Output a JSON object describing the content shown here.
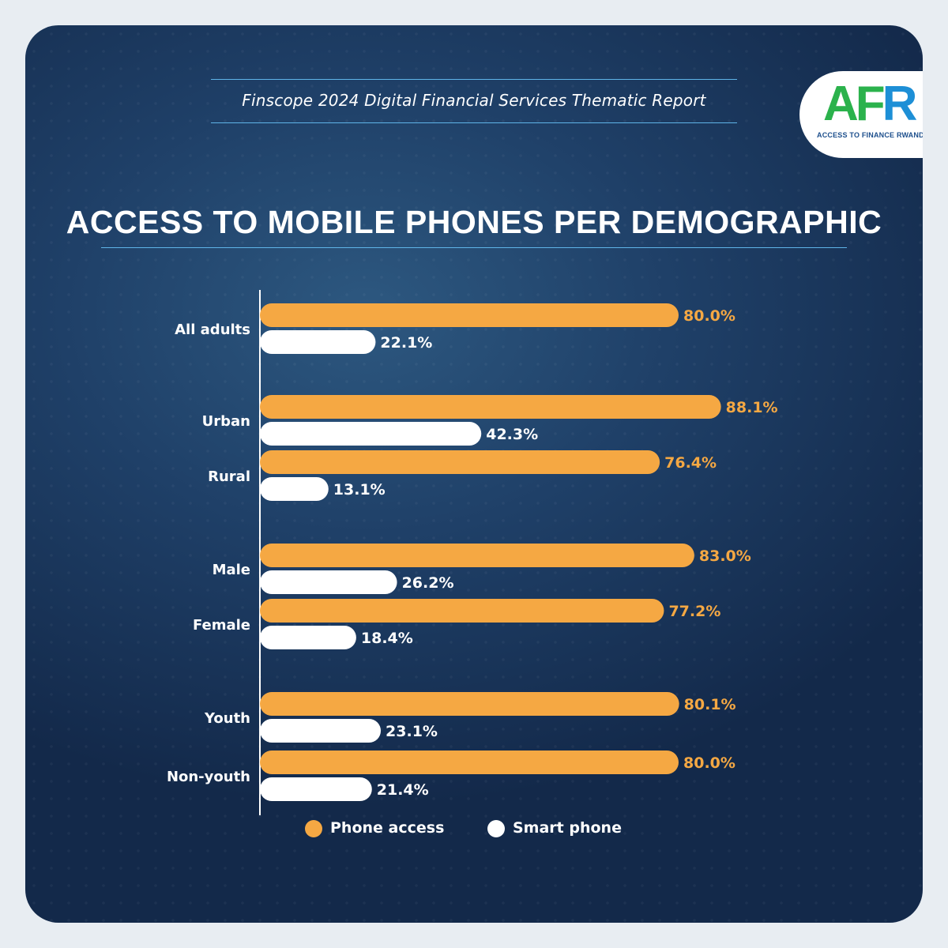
{
  "header": {
    "report_title": "Finscope 2024 Digital Financial Services Thematic Report",
    "logo_text": "AFR",
    "logo_tagline": "ACCESS TO FINANCE RWANDA"
  },
  "colors": {
    "background": "#1f4068",
    "accent_line": "#5fb4e8",
    "phone_access": "#f5a843",
    "smart_phone": "#ffffff",
    "logo_green": "#2bb24c",
    "logo_blue": "#1d8fd6"
  },
  "chart_data": {
    "type": "bar",
    "orientation": "horizontal",
    "title": "ACCESS TO MOBILE PHONES PER DEMOGRAPHIC",
    "categories": [
      "All adults",
      "Urban",
      "Rural",
      "Male",
      "Female",
      "Youth",
      "Non-youth"
    ],
    "groups": [
      [
        "All adults"
      ],
      [
        "Urban",
        "Rural"
      ],
      [
        "Male",
        "Female"
      ],
      [
        "Youth",
        "Non-youth"
      ]
    ],
    "series": [
      {
        "name": "Phone access",
        "color": "#f5a843",
        "values": [
          80.0,
          88.1,
          76.4,
          83.0,
          77.2,
          80.1,
          80.0
        ]
      },
      {
        "name": "Smart phone",
        "color": "#ffffff",
        "values": [
          22.1,
          42.3,
          13.1,
          26.2,
          18.4,
          23.1,
          21.4
        ]
      }
    ],
    "value_labels": {
      "Phone access": [
        "80.0%",
        "88.1%",
        "76.4%",
        "83.0%",
        "77.2%",
        "80.1%",
        "80.0%"
      ],
      "Smart phone": [
        "22.1%",
        "42.3%",
        "13.1%",
        "26.2%",
        "18.4%",
        "23.1%",
        "21.4%"
      ]
    },
    "xlim": [
      0,
      100
    ],
    "unit": "%",
    "grid": false,
    "legend_position": "bottom"
  }
}
